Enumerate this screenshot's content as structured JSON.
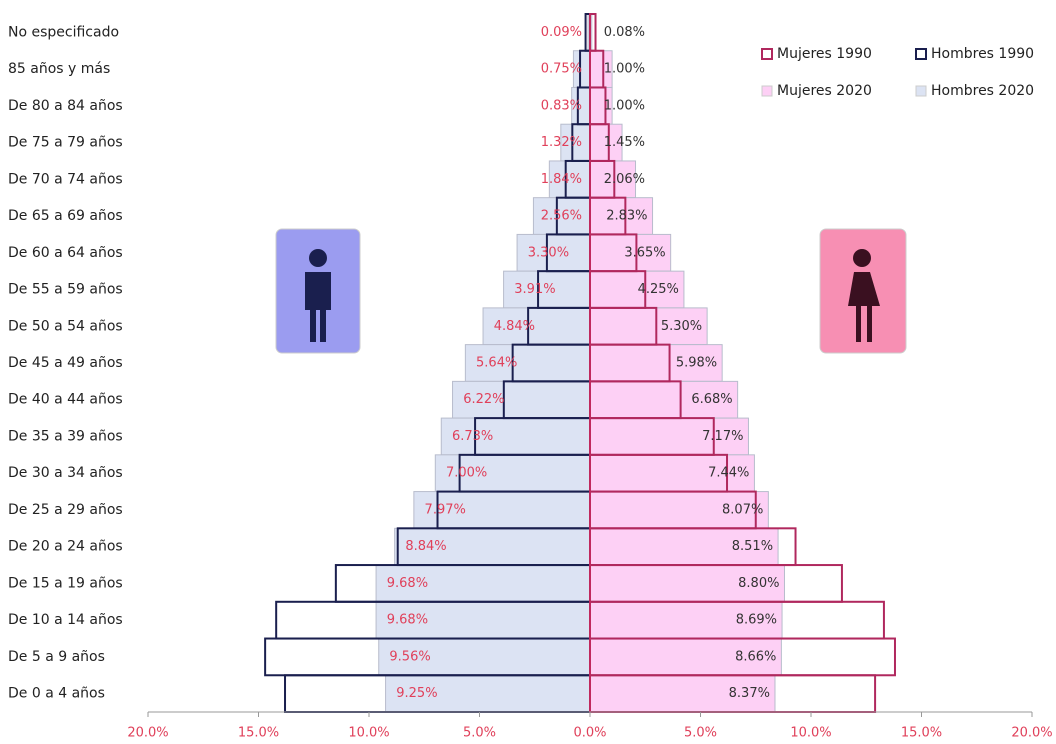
{
  "chart_data": {
    "type": "pyramid",
    "categories": [
      "No especificado",
      "85 años y más",
      "De 80 a 84 años",
      "De 75 a 79 años",
      "De 70 a 74 años",
      "De 65 a 69 años",
      "De 60 a 64 años",
      "De 55 a 59 años",
      "De 50 a 54 años",
      "De 45 a 49 años",
      "De 40 a 44 años",
      "De 35 a 39 años",
      "De 30 a 34 años",
      "De 25 a 29 años",
      "De 20 a 24 años",
      "De 15 a 19 años",
      "De 10 a 14 años",
      "De 5 a 9 años",
      "De 0 a 4 años"
    ],
    "series": [
      {
        "name": "Hombres 2020",
        "color": "#dce3f3",
        "style": "fill",
        "values": [
          -0.09,
          -0.75,
          -0.83,
          -1.32,
          -1.84,
          -2.56,
          -3.3,
          -3.91,
          -4.84,
          -5.64,
          -6.22,
          -6.73,
          -7.0,
          -7.97,
          -8.84,
          -9.68,
          -9.68,
          -9.56,
          -9.25
        ],
        "value_labels": [
          "0.09%",
          "0.75%",
          "0.83%",
          "1.32%",
          "1.84%",
          "2.56%",
          "3.30%",
          "3.91%",
          "4.84%",
          "5.64%",
          "6.22%",
          "6.73%",
          "7.00%",
          "7.97%",
          "8.84%",
          "9.68%",
          "9.68%",
          "9.56%",
          "9.25%"
        ],
        "label_color": "#e0405a"
      },
      {
        "name": "Mujeres 2020",
        "color": "#fdd0f5",
        "style": "fill",
        "values": [
          0.08,
          1.0,
          1.0,
          1.45,
          2.06,
          2.83,
          3.65,
          4.25,
          5.3,
          5.98,
          6.68,
          7.17,
          7.44,
          8.07,
          8.51,
          8.8,
          8.69,
          8.66,
          8.37
        ],
        "value_labels": [
          "0.08%",
          "1.00%",
          "1.00%",
          "1.45%",
          "2.06%",
          "2.83%",
          "3.65%",
          "4.25%",
          "5.30%",
          "5.98%",
          "6.68%",
          "7.17%",
          "7.44%",
          "8.07%",
          "8.51%",
          "8.80%",
          "8.69%",
          "8.66%",
          "8.37%"
        ],
        "label_color": "#333333"
      },
      {
        "name": "Hombres 1990",
        "color": "#1a1f4e",
        "style": "outline",
        "values": [
          -0.2,
          -0.45,
          -0.55,
          -0.8,
          -1.1,
          -1.5,
          -1.95,
          -2.35,
          -2.8,
          -3.5,
          -3.9,
          -5.2,
          -5.9,
          -6.9,
          -8.7,
          -11.5,
          -14.2,
          -14.7,
          -13.8
        ]
      },
      {
        "name": "Mujeres 1990",
        "color": "#b0285e",
        "style": "outline",
        "values": [
          0.25,
          0.6,
          0.7,
          0.85,
          1.1,
          1.6,
          2.1,
          2.5,
          3.0,
          3.6,
          4.1,
          5.6,
          6.2,
          7.5,
          9.3,
          11.4,
          13.3,
          13.8,
          12.9
        ]
      }
    ],
    "xlim": [
      -20,
      20
    ],
    "xticks": [
      {
        "value": -20,
        "label": "20.0%"
      },
      {
        "value": -15,
        "label": "15.0%"
      },
      {
        "value": -10,
        "label": "10.0%"
      },
      {
        "value": -5,
        "label": "5.0%"
      },
      {
        "value": 0,
        "label": "0.0%"
      },
      {
        "value": 5,
        "label": "5.0%"
      },
      {
        "value": 10,
        "label": "10.0%"
      },
      {
        "value": 15,
        "label": "15.0%"
      },
      {
        "value": 20,
        "label": "20.0%"
      }
    ],
    "tick_color": "#e0405a"
  }
}
